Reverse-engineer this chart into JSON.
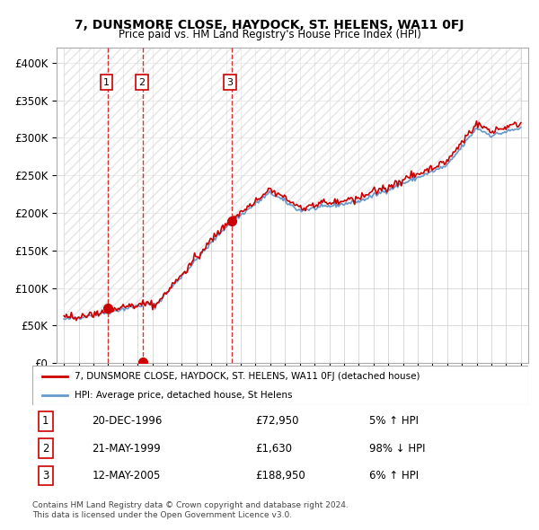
{
  "title": "7, DUNSMORE CLOSE, HAYDOCK, ST. HELENS, WA11 0FJ",
  "subtitle": "Price paid vs. HM Land Registry's House Price Index (HPI)",
  "legend_line1": "7, DUNSMORE CLOSE, HAYDOCK, ST. HELENS, WA11 0FJ (detached house)",
  "legend_line2": "HPI: Average price, detached house, St Helens",
  "footer1": "Contains HM Land Registry data © Crown copyright and database right 2024.",
  "footer2": "This data is licensed under the Open Government Licence v3.0.",
  "transactions": [
    {
      "num": 1,
      "date": "20-DEC-1996",
      "price": 72950,
      "pct": "5%",
      "dir": "↑"
    },
    {
      "num": 2,
      "date": "21-MAY-1999",
      "price": 1630,
      "pct": "98%",
      "dir": "↓"
    },
    {
      "num": 3,
      "date": "12-MAY-2005",
      "price": 188950,
      "pct": "6%",
      "dir": "↑"
    }
  ],
  "transaction_years": [
    1996.97,
    1999.38,
    2005.36
  ],
  "transaction_prices": [
    72950,
    1630,
    188950
  ],
  "ylim": [
    0,
    420000
  ],
  "xlim_left": 1993.5,
  "xlim_right": 2025.5,
  "red_color": "#cc0000",
  "blue_color": "#6699cc",
  "hatch_color": "#dddddd",
  "background_color": "#ffffff",
  "grid_color": "#cccccc"
}
